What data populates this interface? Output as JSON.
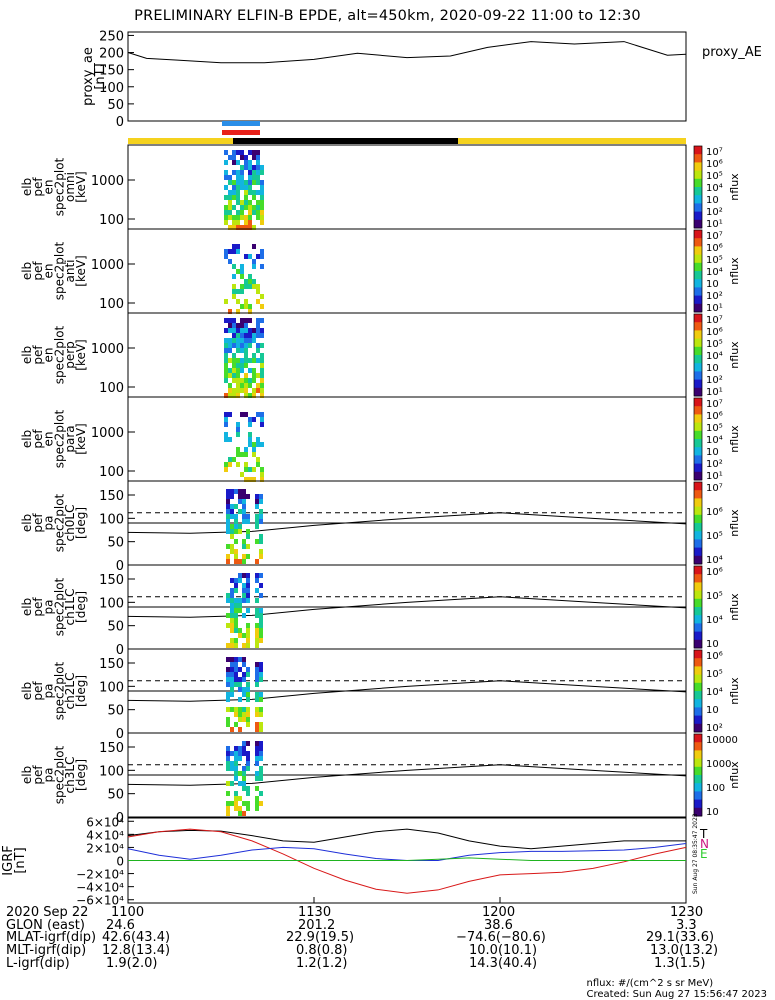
{
  "title": "PRELIMINARY ELFIN-B EPDE, alt=450km, 2020-09-22 11:00 to 12:30",
  "colors": {
    "bar_yellow": "#f5d21e",
    "bar_black": "#000000",
    "bar_blue": "#2a8ee8",
    "bar_red": "#e8211a",
    "line_black": "#000000",
    "line_blue": "#1e2fd8",
    "line_red": "#d81818",
    "line_green": "#1fb31f",
    "label_T": "#000000",
    "label_N": "#cc1a80",
    "label_E": "#2ecc2e"
  },
  "chart_data": [
    {
      "type": "line",
      "panel": "proxy_ae",
      "ylabel": "proxy_ae [nT]",
      "legend": "proxy_AE",
      "ylim": [
        0,
        260
      ],
      "yticks": [
        "250",
        "200",
        "150",
        "100",
        "50",
        "0"
      ],
      "x_minutes": [
        0,
        3,
        8,
        15,
        22,
        30,
        37,
        45,
        52,
        58,
        65,
        72,
        80,
        87,
        90
      ],
      "values": [
        200,
        183,
        178,
        170,
        170,
        180,
        198,
        185,
        190,
        215,
        232,
        225,
        232,
        192,
        195
      ]
    },
    {
      "type": "heatmap",
      "panel": "en_spec2plot_omni",
      "ylabel_lines": [
        "elb",
        "pef",
        "en",
        "spec2plot",
        "omni",
        "[keV]"
      ],
      "yticks": [
        "1000",
        "100"
      ],
      "colorbar": {
        "label": "nflux",
        "ticks": [
          "10⁷",
          "10⁶",
          "10⁵",
          "10⁴",
          "10⁳",
          "10²",
          "10¹"
        ]
      }
    },
    {
      "type": "heatmap",
      "panel": "en_spec2plot_anti",
      "ylabel_lines": [
        "elb",
        "pef",
        "en",
        "spec2plot",
        "anti",
        "[keV]"
      ],
      "yticks": [
        "1000",
        "100"
      ],
      "colorbar": {
        "label": "nflux",
        "ticks": [
          "10⁷",
          "10⁶",
          "10⁵",
          "10⁴",
          "10⁳",
          "10²",
          "10¹"
        ]
      }
    },
    {
      "type": "heatmap",
      "panel": "en_spec2plot_perp",
      "ylabel_lines": [
        "elb",
        "pef",
        "en",
        "spec2plot",
        "perp",
        "[keV]"
      ],
      "yticks": [
        "1000",
        "100"
      ],
      "colorbar": {
        "label": "nflux",
        "ticks": [
          "10⁷",
          "10⁶",
          "10⁵",
          "10⁴",
          "10⁳",
          "10²",
          "10¹"
        ]
      }
    },
    {
      "type": "heatmap",
      "panel": "en_spec2plot_para",
      "ylabel_lines": [
        "elb",
        "pef",
        "en",
        "spec2plot",
        "para",
        "[keV]"
      ],
      "yticks": [
        "1000",
        "100"
      ],
      "colorbar": {
        "label": "nflux",
        "ticks": [
          "10⁷",
          "10⁶",
          "10⁵",
          "10⁴",
          "10⁳",
          "10²",
          "10¹"
        ]
      }
    },
    {
      "type": "heatmap",
      "panel": "pa_spec2plot_ch0LC",
      "ylabel_lines": [
        "elb",
        "pef",
        "pa",
        "spec2plot",
        "ch0LC",
        "[deg]"
      ],
      "ylim": [
        0,
        180
      ],
      "yticks": [
        "150",
        "100",
        "50",
        "0"
      ],
      "colorbar": {
        "label": "nflux",
        "ticks": [
          "10⁷",
          "10⁶",
          "10⁵",
          "10⁴"
        ]
      }
    },
    {
      "type": "heatmap",
      "panel": "pa_spec2plot_ch1LC",
      "ylabel_lines": [
        "elb",
        "pef",
        "pa",
        "spec2plot",
        "ch1LC",
        "[deg]"
      ],
      "ylim": [
        0,
        180
      ],
      "yticks": [
        "150",
        "100",
        "50",
        "0"
      ],
      "colorbar": {
        "label": "nflux",
        "ticks": [
          "10⁶",
          "10⁵",
          "10⁴",
          "10⁳"
        ]
      }
    },
    {
      "type": "heatmap",
      "panel": "pa_spec2plot_ch2LC",
      "ylabel_lines": [
        "elb",
        "pef",
        "pa",
        "spec2plot",
        "ch2LC",
        "[deg]"
      ],
      "ylim": [
        0,
        180
      ],
      "yticks": [
        "150",
        "100",
        "50",
        "0"
      ],
      "colorbar": {
        "label": "nflux",
        "ticks": [
          "10⁶",
          "10⁵",
          "10⁴",
          "10⁳",
          "10²"
        ]
      }
    },
    {
      "type": "heatmap",
      "panel": "pa_spec2plot_ch3LC",
      "ylabel_lines": [
        "elb",
        "pef",
        "pa",
        "spec2plot",
        "ch3LC",
        "[deg]"
      ],
      "ylim": [
        0,
        180
      ],
      "yticks": [
        "150",
        "100",
        "50",
        "0"
      ],
      "colorbar": {
        "label": "nflux",
        "ticks": [
          "10000",
          "1000",
          "100",
          "10"
        ]
      }
    },
    {
      "type": "line",
      "panel": "IGRF",
      "ylabel": "IGRF [nT]",
      "ylim": [
        -65000,
        65000
      ],
      "yticks": [
        "6×10⁴",
        "4×10⁴",
        "2×10⁴",
        "0",
        "−2×10⁴",
        "−4×10⁴",
        "−6×10⁴"
      ],
      "legend": [
        "T",
        "N",
        "E"
      ],
      "x_minutes": [
        0,
        5,
        10,
        15,
        20,
        25,
        30,
        35,
        40,
        45,
        50,
        55,
        60,
        65,
        70,
        75,
        80,
        85,
        90
      ],
      "series": [
        {
          "name": "T",
          "values": [
            38000,
            44000,
            46000,
            45000,
            38000,
            30000,
            28000,
            36000,
            44000,
            48000,
            42000,
            30000,
            22000,
            18000,
            22000,
            26000,
            30000,
            30000,
            30000
          ]
        },
        {
          "name": "N",
          "values": [
            36000,
            44000,
            48000,
            44000,
            30000,
            10000,
            -12000,
            -30000,
            -44000,
            -50000,
            -45000,
            -32000,
            -22000,
            -20000,
            -18000,
            -12000,
            -2000,
            10000,
            20000
          ]
        },
        {
          "name": "E",
          "values": [
            18000,
            8000,
            2000,
            8000,
            16000,
            20000,
            18000,
            10000,
            3000,
            0,
            0,
            8000,
            12000,
            14000,
            14000,
            15000,
            16000,
            20000,
            26000
          ]
        },
        {
          "name": "",
          "values": [
            0,
            0,
            0,
            0,
            0,
            0,
            0,
            0,
            0,
            0,
            2000,
            4000,
            2000,
            0,
            0,
            0,
            0,
            0,
            0
          ]
        }
      ],
      "xticks": [
        "1100",
        "1130",
        "1200",
        "1230"
      ]
    }
  ],
  "footer": {
    "rows": [
      {
        "label": "2020 Sep 22",
        "values": [
          "1100",
          "1130",
          "1200",
          "1230"
        ]
      },
      {
        "label": "GLON (east)",
        "values": [
          "24.6",
          "201.2",
          "38.6",
          "3.3"
        ]
      },
      {
        "label": "MLAT-igrf(dip)",
        "values": [
          "42.6(43.4)",
          "22.9(19.5)",
          "−74.6(−80.6)",
          "29.1(33.6)"
        ]
      },
      {
        "label": "MLT-igrf(dip)",
        "values": [
          "12.8(13.4)",
          "0.8(0.8)",
          "10.0(10.1)",
          "13.0(13.2)"
        ]
      },
      {
        "label": "L-igrf(dip)",
        "values": [
          "1.9(2.0)",
          "1.2(1.2)",
          "14.3(40.4)",
          "1.3(1.5)"
        ]
      }
    ],
    "note_line1": "nflux: #/(cm^2 s sr MeV)",
    "note_line2": "Created: Sun Aug 27 15:56:47 2023",
    "vertical_stamp": "Sun Aug 27 08:35:47 2023"
  }
}
